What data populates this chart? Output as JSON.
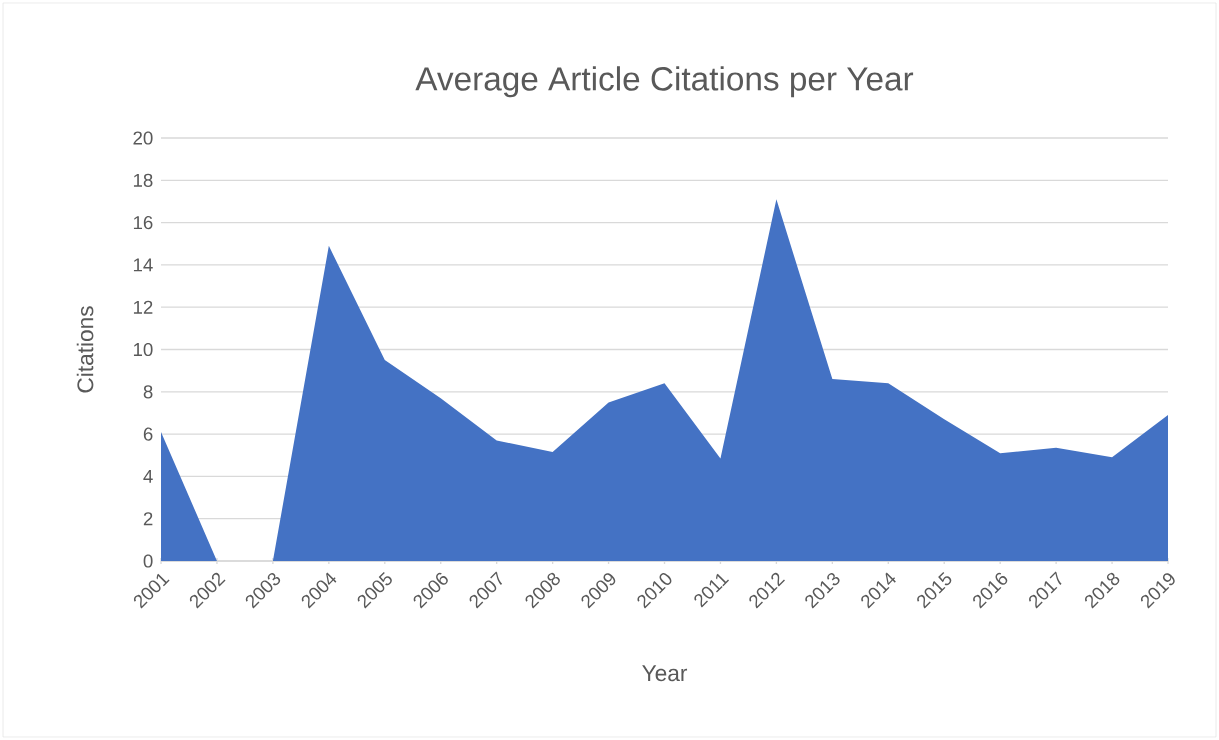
{
  "chart_data": {
    "type": "area",
    "title": "Average Article Citations per Year",
    "xlabel": "Year",
    "ylabel": "Citations",
    "categories": [
      "2001",
      "2002",
      "2003",
      "2004",
      "2005",
      "2006",
      "2007",
      "2008",
      "2009",
      "2010",
      "2011",
      "2012",
      "2013",
      "2014",
      "2015",
      "2016",
      "2017",
      "2018",
      "2019"
    ],
    "series": [
      {
        "color": "#4472c4",
        "values": [
          6.1,
          0,
          0,
          14.9,
          9.5,
          7.7,
          5.7,
          5.15,
          7.5,
          8.4,
          4.85,
          17.1,
          8.6,
          8.4,
          6.7,
          5.1,
          5.35,
          4.9,
          6.9
        ]
      }
    ],
    "ylim": [
      0,
      20
    ],
    "yticks": [
      0,
      2,
      4,
      6,
      8,
      10,
      12,
      14,
      16,
      18,
      20
    ],
    "grid": "y"
  }
}
